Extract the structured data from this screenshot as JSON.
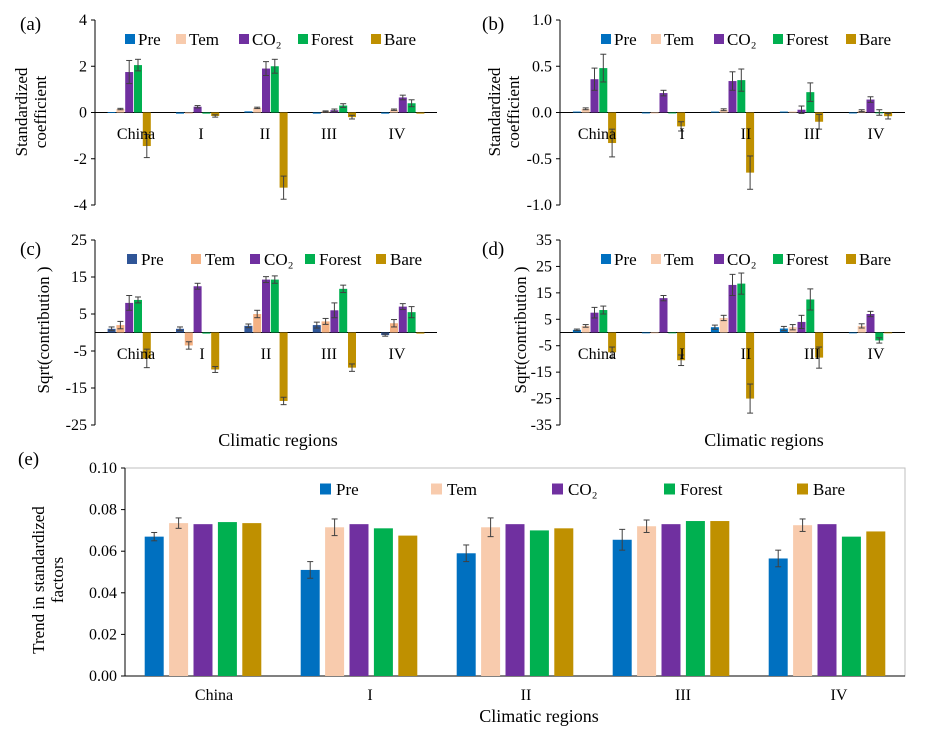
{
  "series_names": [
    "Pre",
    "Tem",
    "CO₂",
    "Forest",
    "Bare"
  ],
  "colors_abde": [
    "#0070C0",
    "#F8CBAD",
    "#7030A0",
    "#00B050",
    "#BF9000"
  ],
  "colors_c": [
    "#2F5597",
    "#F4B183",
    "#7030A0",
    "#00B050",
    "#BF9000"
  ],
  "error_color": "#404040",
  "xlabel": "Climatic regions",
  "chart_data": [
    {
      "panel": "(a)",
      "type": "bar",
      "ylabel": [
        "Standardized",
        "coefficient"
      ],
      "ylim": [
        -4,
        4
      ],
      "yticks": [
        -4,
        -2,
        0,
        2,
        4
      ],
      "ytick_labels": [
        "-4",
        "-2",
        "0",
        "2",
        "4"
      ],
      "categories": [
        "China",
        "I",
        "II",
        "III",
        "IV"
      ],
      "legend": "top",
      "series": [
        {
          "name": "Pre",
          "values": [
            0.02,
            -0.05,
            0.05,
            -0.05,
            -0.05
          ],
          "errors": [
            0,
            0,
            0,
            0,
            0
          ]
        },
        {
          "name": "Tem",
          "values": [
            0.15,
            -0.05,
            0.2,
            0.05,
            0.12
          ],
          "errors": [
            0.03,
            0,
            0.03,
            0.02,
            0.03
          ]
        },
        {
          "name": "CO₂",
          "values": [
            1.75,
            0.25,
            1.9,
            0.1,
            0.65
          ],
          "errors": [
            0.5,
            0.05,
            0.3,
            0.05,
            0.1
          ]
        },
        {
          "name": "Forest",
          "values": [
            2.05,
            -0.05,
            2.0,
            0.3,
            0.4
          ],
          "errors": [
            0.25,
            0,
            0.3,
            0.08,
            0.15
          ]
        },
        {
          "name": "Bare",
          "values": [
            -1.45,
            -0.15,
            -3.25,
            -0.2,
            -0.05
          ],
          "errors": [
            0.5,
            0.05,
            0.5,
            0.08,
            0
          ]
        }
      ]
    },
    {
      "panel": "(b)",
      "type": "bar",
      "ylabel": [
        "Standardized",
        "coefficient"
      ],
      "ylim": [
        -1.0,
        1.0
      ],
      "yticks": [
        -1.0,
        -0.5,
        0.0,
        0.5,
        1.0
      ],
      "ytick_labels": [
        "-1.0",
        "-0.5",
        "0.0",
        "0.5",
        "1.0"
      ],
      "categories": [
        "China",
        "I",
        "II",
        "III",
        "IV"
      ],
      "legend": "top",
      "series": [
        {
          "name": "Pre",
          "values": [
            0.01,
            -0.01,
            0.01,
            0.01,
            -0.01
          ],
          "errors": [
            0,
            0,
            0,
            0,
            0
          ]
        },
        {
          "name": "Tem",
          "values": [
            0.04,
            -0.01,
            0.03,
            0.01,
            0.02
          ],
          "errors": [
            0.01,
            0,
            0.01,
            0,
            0.01
          ]
        },
        {
          "name": "CO₂",
          "values": [
            0.36,
            0.21,
            0.34,
            0.03,
            0.14
          ],
          "errors": [
            0.12,
            0.03,
            0.1,
            0.04,
            0.03
          ]
        },
        {
          "name": "Forest",
          "values": [
            0.48,
            -0.01,
            0.35,
            0.22,
            0.0
          ],
          "errors": [
            0.15,
            0,
            0.12,
            0.1,
            0.03
          ]
        },
        {
          "name": "Bare",
          "values": [
            -0.33,
            -0.15,
            -0.65,
            -0.1,
            -0.04
          ],
          "errors": [
            0.15,
            0.05,
            0.18,
            0.08,
            0.03
          ]
        }
      ]
    },
    {
      "panel": "(c)",
      "type": "bar",
      "ylabel": [
        "Sqrt(contribution )"
      ],
      "ylim": [
        -25,
        25
      ],
      "yticks": [
        -25,
        -15,
        -5,
        5,
        15,
        25
      ],
      "ytick_labels": [
        "-25",
        "-15",
        "-5",
        "5",
        "15",
        "25"
      ],
      "categories": [
        "China",
        "I",
        "II",
        "III",
        "IV"
      ],
      "legend": "top",
      "series": [
        {
          "name": "Pre",
          "values": [
            1.0,
            1.0,
            1.8,
            2.0,
            -0.7
          ],
          "errors": [
            0.5,
            0.5,
            0.5,
            0.8,
            0.3
          ]
        },
        {
          "name": "Tem",
          "values": [
            2.0,
            -3.5,
            5.0,
            3.0,
            2.5
          ],
          "errors": [
            1.0,
            1.0,
            1.0,
            0.8,
            1.0
          ]
        },
        {
          "name": "CO₂",
          "values": [
            8.0,
            12.5,
            14.3,
            6.0,
            7.0
          ],
          "errors": [
            2.0,
            0.8,
            0.8,
            2.0,
            0.8
          ]
        },
        {
          "name": "Forest",
          "values": [
            8.8,
            -0.3,
            14.3,
            11.8,
            5.5
          ],
          "errors": [
            0.8,
            0,
            1.0,
            1.0,
            1.5
          ]
        },
        {
          "name": "Bare",
          "values": [
            -7.0,
            -10.0,
            -18.5,
            -9.5,
            -0.3
          ],
          "errors": [
            2.5,
            0.8,
            1.0,
            1.0,
            0
          ]
        }
      ]
    },
    {
      "panel": "(d)",
      "type": "bar",
      "ylabel": [
        "Sqrt(contribution )"
      ],
      "ylim": [
        -35,
        35
      ],
      "yticks": [
        -35,
        -25,
        -15,
        -5,
        5,
        15,
        25,
        35
      ],
      "ytick_labels": [
        "-35",
        "-25",
        "-15",
        "-5",
        "5",
        "15",
        "25",
        "35"
      ],
      "categories": [
        "China",
        "I",
        "II",
        "III",
        "IV"
      ],
      "legend": "top",
      "series": [
        {
          "name": "Pre",
          "values": [
            1.0,
            -0.3,
            2.0,
            1.5,
            -0.3
          ],
          "errors": [
            0.3,
            0,
            0.8,
            0.8,
            0
          ]
        },
        {
          "name": "Tem",
          "values": [
            2.5,
            -0.3,
            5.5,
            2.0,
            2.5
          ],
          "errors": [
            0.5,
            0,
            1.0,
            1.0,
            0.8
          ]
        },
        {
          "name": "CO₂",
          "values": [
            7.5,
            13.0,
            18.0,
            4.0,
            7.0
          ],
          "errors": [
            2.0,
            1.0,
            4.0,
            2.5,
            1.0
          ]
        },
        {
          "name": "Forest",
          "values": [
            8.5,
            -0.3,
            18.5,
            12.5,
            -3.0
          ],
          "errors": [
            1.5,
            0,
            4.0,
            4.0,
            1.0
          ]
        },
        {
          "name": "Bare",
          "values": [
            -7.5,
            -10.5,
            -25.0,
            -9.5,
            -0.3
          ],
          "errors": [
            2.0,
            2.0,
            5.5,
            4.0,
            0
          ]
        }
      ]
    },
    {
      "panel": "(e)",
      "type": "bar",
      "ylabel": [
        "Trend in standardized",
        "factors"
      ],
      "ylim": [
        0,
        0.1
      ],
      "yticks": [
        0,
        0.02,
        0.04,
        0.06,
        0.08,
        0.1
      ],
      "ytick_labels": [
        "0.00",
        "0.02",
        "0.04",
        "0.06",
        "0.08",
        "0.10"
      ],
      "categories": [
        "China",
        "I",
        "II",
        "III",
        "IV"
      ],
      "xlabel": "Climatic regions",
      "legend": "top",
      "series": [
        {
          "name": "Pre",
          "values": [
            0.067,
            0.051,
            0.059,
            0.0655,
            0.0565
          ],
          "errors": [
            0.002,
            0.004,
            0.004,
            0.005,
            0.004
          ]
        },
        {
          "name": "Tem",
          "values": [
            0.0735,
            0.0715,
            0.0715,
            0.072,
            0.0725
          ],
          "errors": [
            0.0025,
            0.004,
            0.0045,
            0.003,
            0.003
          ]
        },
        {
          "name": "CO₂",
          "values": [
            0.073,
            0.073,
            0.073,
            0.073,
            0.073
          ],
          "errors": [
            0,
            0,
            0,
            0,
            0
          ]
        },
        {
          "name": "Forest",
          "values": [
            0.074,
            0.071,
            0.07,
            0.0745,
            0.067
          ],
          "errors": [
            0,
            0,
            0,
            0,
            0
          ]
        },
        {
          "name": "Bare",
          "values": [
            0.0735,
            0.0675,
            0.071,
            0.0745,
            0.0695
          ],
          "errors": [
            0,
            0,
            0,
            0,
            0
          ]
        }
      ]
    }
  ]
}
